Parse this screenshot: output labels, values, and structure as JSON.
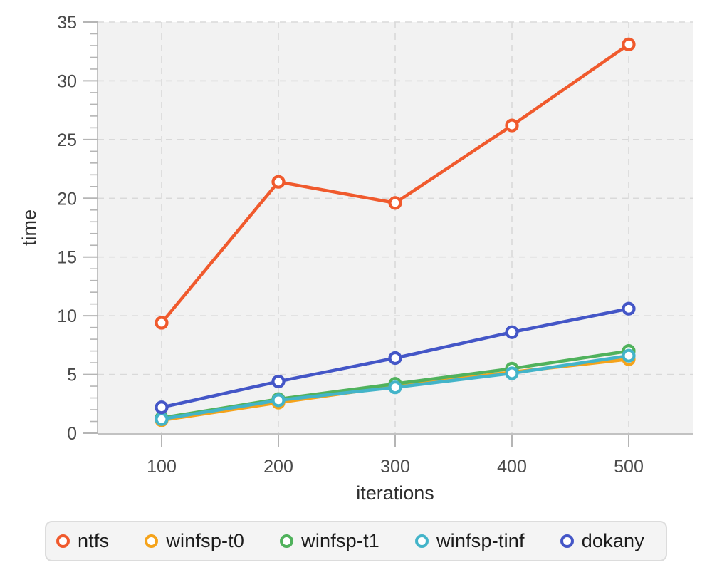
{
  "page": {
    "background": "#ffffff"
  },
  "chart_data": {
    "type": "line",
    "title": "",
    "xlabel": "iterations",
    "ylabel": "time",
    "x": [
      100,
      200,
      300,
      400,
      500
    ],
    "x_ticks": [
      100,
      200,
      300,
      400,
      500
    ],
    "y_ticks": [
      0,
      5,
      10,
      15,
      20,
      25,
      30,
      35
    ],
    "y_minor_tick_step": 1,
    "ylim": [
      0,
      35
    ],
    "grid": "dashed-major",
    "marker": "open-circle",
    "legend_position": "bottom",
    "series": [
      {
        "name": "ntfs",
        "color": "#f05a2d",
        "values": [
          9.4,
          21.4,
          19.6,
          26.2,
          33.1
        ]
      },
      {
        "name": "winfsp-t0",
        "color": "#f5a31b",
        "values": [
          1.1,
          2.6,
          4.0,
          5.2,
          6.3
        ]
      },
      {
        "name": "winfsp-t1",
        "color": "#50b25c",
        "values": [
          1.3,
          2.9,
          4.2,
          5.5,
          7.0
        ]
      },
      {
        "name": "winfsp-tinf",
        "color": "#43b4c9",
        "values": [
          1.2,
          2.8,
          3.9,
          5.1,
          6.6
        ]
      },
      {
        "name": "dokany",
        "color": "#4456c7",
        "values": [
          2.2,
          4.4,
          6.4,
          8.6,
          10.6
        ]
      }
    ],
    "style": {
      "plot_background": "#f2f2f2",
      "grid_color": "#d9d9d9",
      "axis_color": "#c2c2c2",
      "tick_color": "#b5b5b5",
      "tick_label_color": "#4a4a4a",
      "axis_title_color": "#2e2e2e",
      "legend_background": "#f4f4f4",
      "legend_border": "#dcdcdc",
      "legend_text_color": "#1c1c1c"
    }
  }
}
